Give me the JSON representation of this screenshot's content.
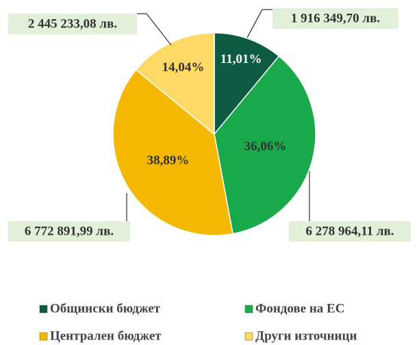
{
  "chart_data": {
    "type": "pie",
    "categories": [
      "Общински бюджет",
      "Фондове на ЕС",
      "Централен бюджет",
      "Други източници"
    ],
    "values": [
      11.01,
      36.06,
      38.89,
      14.04
    ],
    "value_labels": [
      "11,01%",
      "36,06%",
      "38,89%",
      "14,04%"
    ],
    "amounts": [
      1916349.7,
      6278964.11,
      6772891.99,
      2445233.08
    ],
    "amount_labels": [
      "1 916 349,70 лв.",
      "6 278 964,11 лв.",
      "6 772 891,99 лв.",
      "2 445 233,08 лв."
    ],
    "colors": [
      "#0e5a43",
      "#19a84a",
      "#f5b800",
      "#ffd966"
    ],
    "legend": "bottom"
  }
}
